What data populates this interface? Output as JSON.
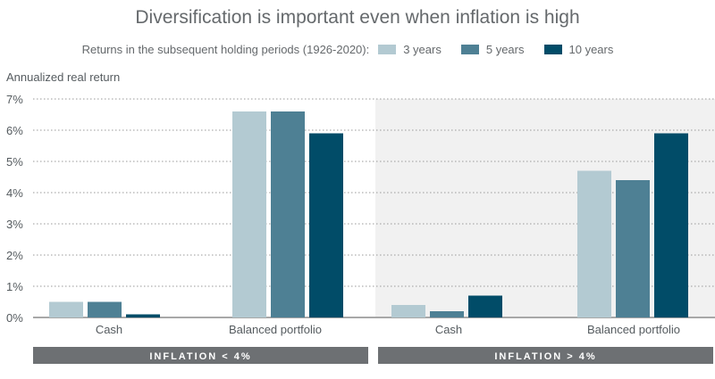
{
  "title": "Diversification is important even when inflation is high",
  "legend": {
    "lead": "Returns in the subsequent holding periods (1926-2020):",
    "items": [
      {
        "label": "3 years",
        "color": "#b3cad2"
      },
      {
        "label": "5 years",
        "color": "#4e8094"
      },
      {
        "label": "10 years",
        "color": "#014c68"
      }
    ]
  },
  "chart_data": {
    "type": "bar",
    "title": "Diversification is important even when inflation is high",
    "subtitle": "Returns in the subsequent holding periods (1926-2020):",
    "xlabel": "",
    "ylabel": "Annualized real return",
    "ylim": [
      0,
      7
    ],
    "yticks": [
      "0%",
      "1%",
      "2%",
      "3%",
      "4%",
      "5%",
      "6%",
      "7%"
    ],
    "grid": true,
    "legend_position": "top",
    "panels": [
      {
        "label": "INFLATION < 4%",
        "categories": [
          "Cash",
          "Balanced portfolio"
        ],
        "series": [
          {
            "name": "3 years",
            "values": [
              0.5,
              6.6
            ]
          },
          {
            "name": "5 years",
            "values": [
              0.5,
              6.6
            ]
          },
          {
            "name": "10 years",
            "values": [
              0.1,
              5.9
            ]
          }
        ]
      },
      {
        "label": "INFLATION > 4%",
        "categories": [
          "Cash",
          "Balanced portfolio"
        ],
        "series": [
          {
            "name": "3 years",
            "values": [
              0.4,
              4.7
            ]
          },
          {
            "name": "5 years",
            "values": [
              0.2,
              4.4
            ]
          },
          {
            "name": "10 years",
            "values": [
              0.7,
              5.9
            ]
          }
        ]
      }
    ]
  }
}
